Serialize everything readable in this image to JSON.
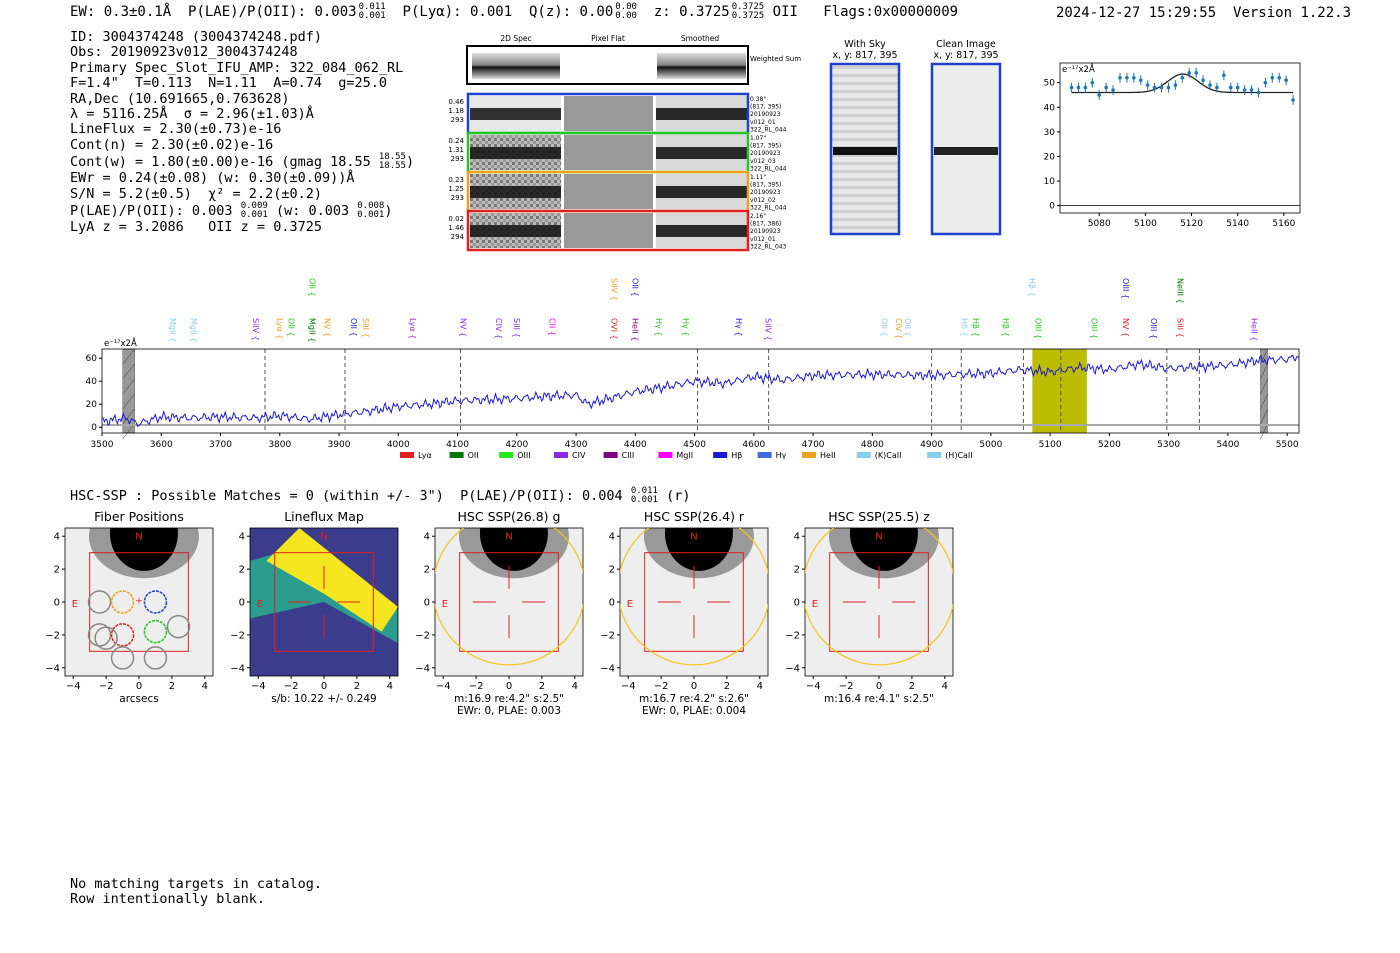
{
  "header": {
    "ew_label": "EW: 0.3±0.1Å",
    "plae_label": "P(LAE)/P(OII): 0.003",
    "plae_hi": "0.011",
    "plae_lo": "0.001",
    "plya_label": "P(Lyα): 0.001",
    "qz_label": "Q(z): 0.00",
    "qz_hi": "0.00",
    "qz_lo": "0.00",
    "z_label": "z: 0.3725",
    "z_hi": "0.3725",
    "z_lo": "0.3725",
    "z_line": "OII",
    "flags": "Flags:0x00000009",
    "timestamp": "2024-12-27 15:29:55",
    "version": "Version 1.22.3"
  },
  "info": {
    "id": "ID: 3004374248 (3004374248.pdf)",
    "obs": "Obs: 20190923v012_3004374248",
    "primary": "Primary Spec_Slot_IFU_AMP: 322_084_062_RL",
    "params": "F=1.4\"  T=0.113  N=1.11  A=0.74  g=25.0",
    "radec": "RA,Dec (10.691665,0.763628)",
    "lambda": "λ = 5116.25Å  σ = 2.96(±1.03)Å",
    "lineflux": "LineFlux = 2.30(±0.73)e-16",
    "contn": "Cont(n) = 2.30(±0.02)e-16",
    "contw": "Cont(w) = 1.80(±0.00)e-16 (gmag 18.55",
    "contw_hi": "18.55",
    "contw_lo": "18.55",
    "ewr": "EWr = 0.24(±0.08) (w: 0.30(±0.09))Å",
    "sn": "S/N = 5.2(±0.5)  χ² = 2.2(±0.2)",
    "plae": "P(LAE)/P(OII): 0.003",
    "plae_hi": "0.009",
    "plae_lo": "0.001",
    "plae_w": "(w: 0.003",
    "plae_w_hi": "0.008",
    "plae_w_lo": "0.001",
    "lya_oii": "LyA z = 3.2086   OII z = 0.3725"
  },
  "cutouts": {
    "col_headers": [
      "2D Spec",
      "Pixel Flat",
      "Smoothed"
    ],
    "weighted_sum": "Weighted Sum",
    "rows": [
      {
        "left": [
          "0.46",
          "1.18",
          "293"
        ],
        "right": [
          "0.38\"",
          "(817, 395)",
          "20190923",
          "v012_01",
          "322_RL_044"
        ],
        "color": "#1f3fd0"
      },
      {
        "left": [
          "0.24",
          "1.31",
          "293"
        ],
        "right": [
          "1.07\"",
          "(817, 395)",
          "20190923",
          "v012_03",
          "322_RL_044"
        ],
        "color": "#22c81e"
      },
      {
        "left": [
          "0.23",
          "1.25",
          "293"
        ],
        "right": [
          "1.11\"",
          "(817, 395)",
          "20190923",
          "v012_02",
          "322_RL_044"
        ],
        "color": "#f0a020"
      },
      {
        "left": [
          "0.02",
          "1.46",
          "294"
        ],
        "right": [
          "2.16\"",
          "(817, 386)",
          "20190923",
          "v012_01",
          "322_RL_043"
        ],
        "color": "#e02020"
      }
    ],
    "with_sky_title": "With Sky",
    "with_sky_xy": "x, y: 817, 395",
    "clean_title": "Clean Image",
    "clean_xy": "x, y: 817, 395"
  },
  "colors": {
    "spectrum": "#1a1ad0",
    "zoom_points": "#1f77b4",
    "highlight": "#bdbd00",
    "fiber_blue": "#1f3fd0",
    "fiber_green": "#22c81e",
    "fiber_orange": "#f0a020",
    "fiber_red": "#e02020",
    "aperture": "#f5c518"
  },
  "chart_data": [
    {
      "type": "scatter",
      "name": "zoom-line-fit",
      "ylabel": "e⁻¹⁷x2Å",
      "x": [
        5068,
        5071,
        5074,
        5077,
        5080,
        5083,
        5086,
        5089,
        5092,
        5095,
        5098,
        5101,
        5104,
        5107,
        5110,
        5113,
        5116,
        5119,
        5122,
        5125,
        5128,
        5131,
        5134,
        5137,
        5140,
        5143,
        5146,
        5149,
        5152,
        5155,
        5158,
        5161,
        5164
      ],
      "y": [
        48,
        48,
        48,
        50,
        45,
        48,
        47,
        52,
        52,
        52,
        51,
        49,
        48,
        48,
        48,
        49,
        52,
        54,
        54,
        51,
        49,
        48,
        53,
        48,
        48,
        47,
        47,
        46,
        50,
        52,
        52,
        51,
        43
      ],
      "fit_baseline": 46,
      "fit_peak": 53.5,
      "fit_center": 5116.25,
      "fit_sigma": 2.96,
      "xlim": [
        5063,
        5167
      ],
      "ylim": [
        -3,
        58
      ],
      "yticks": [
        0,
        10,
        20,
        30,
        40,
        50
      ],
      "xticks": [
        5080,
        5100,
        5120,
        5140,
        5160
      ],
      "grid": false
    },
    {
      "type": "line",
      "name": "full-spectrum",
      "ylabel": "e⁻¹⁷x2Å",
      "xlim": [
        3500,
        5520
      ],
      "ylim": [
        -5,
        68
      ],
      "yticks": [
        0,
        20,
        40,
        60
      ],
      "xticks": [
        3500,
        3600,
        3700,
        3800,
        3900,
        4000,
        4100,
        4200,
        4300,
        4400,
        4500,
        4600,
        4700,
        4800,
        4900,
        5000,
        5100,
        5200,
        5300,
        5400,
        5500
      ],
      "anchors_x": [
        3500,
        3540,
        3560,
        3600,
        3650,
        3700,
        3760,
        3800,
        3850,
        3900,
        3950,
        4000,
        4050,
        4100,
        4150,
        4200,
        4250,
        4300,
        4320,
        4400,
        4450,
        4500,
        4550,
        4600,
        4650,
        4700,
        4800,
        4900,
        5000,
        5050,
        5100,
        5150,
        5200,
        5250,
        5300,
        5400,
        5450,
        5500,
        5520
      ],
      "anchors_y": [
        5,
        8,
        3,
        9,
        8,
        9,
        8,
        10,
        7,
        11,
        14,
        18,
        20,
        23,
        24,
        25,
        27,
        28,
        20,
        31,
        35,
        40,
        38,
        44,
        41,
        45,
        46,
        45,
        47,
        50,
        48,
        52,
        50,
        55,
        51,
        54,
        58,
        59,
        62
      ],
      "cont_y": 2,
      "line_markers": [
        3775,
        3910,
        4105,
        4505,
        4625,
        4900,
        4950,
        5055,
        5118,
        5297,
        5352
      ],
      "highlight_band": [
        5070,
        5162
      ],
      "hatched_bands": [
        [
          3535,
          3555
        ],
        [
          5455,
          5467
        ]
      ],
      "line_labels": [
        {
          "name": "MgII",
          "x": 3610,
          "color": "#87ceeb",
          "row": 1
        },
        {
          "name": "MgII",
          "x": 3645,
          "color": "#87ceeb",
          "row": 1
        },
        {
          "name": "SiIV",
          "x": 3750,
          "color": "#8a2be2",
          "row": 1
        },
        {
          "name": "Lyα",
          "x": 3790,
          "color": "#f0a020",
          "row": 1
        },
        {
          "name": "OII",
          "x": 3810,
          "color": "#22c81e",
          "row": 1
        },
        {
          "name": "MgII",
          "x": 3845,
          "color": "#007700",
          "row": 1
        },
        {
          "name": "OII",
          "x": 3845,
          "color": "#22c81e",
          "row": 0
        },
        {
          "name": "NV",
          "x": 3870,
          "color": "#f0a020",
          "row": 1
        },
        {
          "name": "OII",
          "x": 3915,
          "color": "#1a1ad0",
          "row": 1
        },
        {
          "name": "SiII",
          "x": 3935,
          "color": "#f0a020",
          "row": 1
        },
        {
          "name": "Lyα",
          "x": 4015,
          "color": "#8a2be2",
          "row": 1
        },
        {
          "name": "NV",
          "x": 4100,
          "color": "#8a2be2",
          "row": 1
        },
        {
          "name": "CIV",
          "x": 4160,
          "color": "#8a2be2",
          "row": 1
        },
        {
          "name": "SiII",
          "x": 4190,
          "color": "#8a2be2",
          "row": 1
        },
        {
          "name": "CII",
          "x": 4250,
          "color": "#ff00ff",
          "row": 1
        },
        {
          "name": "SiIV",
          "x": 4355,
          "color": "#f0a020",
          "row": 0
        },
        {
          "name": "OVI",
          "x": 4355,
          "color": "#e02020",
          "row": 1
        },
        {
          "name": "OII",
          "x": 4390,
          "color": "#1a1ad0",
          "row": 0
        },
        {
          "name": "HeII",
          "x": 4390,
          "color": "#800080",
          "row": 1
        },
        {
          "name": "Hγ",
          "x": 4430,
          "color": "#22c81e",
          "row": 1
        },
        {
          "name": "Hγ",
          "x": 4475,
          "color": "#22c81e",
          "row": 1
        },
        {
          "name": "Hγ",
          "x": 4565,
          "color": "#1a1ad0",
          "row": 1
        },
        {
          "name": "SiIV",
          "x": 4615,
          "color": "#8a2be2",
          "row": 1
        },
        {
          "name": "OII",
          "x": 4810,
          "color": "#87ceeb",
          "row": 1
        },
        {
          "name": "CIV",
          "x": 4835,
          "color": "#f0a020",
          "row": 1
        },
        {
          "name": "OII",
          "x": 4850,
          "color": "#87ceeb",
          "row": 1
        },
        {
          "name": "Hδ",
          "x": 4945,
          "color": "#87ceeb",
          "row": 1
        },
        {
          "name": "Hβ",
          "x": 4965,
          "color": "#22c81e",
          "row": 1
        },
        {
          "name": "Hβ",
          "x": 5015,
          "color": "#22c81e",
          "row": 1
        },
        {
          "name": "Hβ",
          "x": 5060,
          "color": "#87ceeb",
          "row": 0
        },
        {
          "name": "OIII",
          "x": 5070,
          "color": "#22c81e",
          "row": 1
        },
        {
          "name": "OIII",
          "x": 5165,
          "color": "#22c81e",
          "row": 1
        },
        {
          "name": "OIII",
          "x": 5218,
          "color": "#1a1ad0",
          "row": 0
        },
        {
          "name": "NV",
          "x": 5218,
          "color": "#e02020",
          "row": 1
        },
        {
          "name": "OIII",
          "x": 5265,
          "color": "#1a1ad0",
          "row": 1
        },
        {
          "name": "NeIII",
          "x": 5310,
          "color": "#007700",
          "row": 0
        },
        {
          "name": "SiII",
          "x": 5310,
          "color": "#e02020",
          "row": 1
        },
        {
          "name": "HeII",
          "x": 5435,
          "color": "#8a2be2",
          "row": 1
        }
      ],
      "legend": [
        {
          "name": "Lyα",
          "color": "#e02020"
        },
        {
          "name": "OII",
          "color": "#007700"
        },
        {
          "name": "OIII",
          "color": "#22e81e"
        },
        {
          "name": "CIV",
          "color": "#8a2be2"
        },
        {
          "name": "CIII",
          "color": "#800080"
        },
        {
          "name": "MgII",
          "color": "#ff00ff"
        },
        {
          "name": "Hβ",
          "color": "#1a1ad0"
        },
        {
          "name": "Hγ",
          "color": "#4169e1"
        },
        {
          "name": "HeII",
          "color": "#f0a020"
        },
        {
          "name": "(K)CaII",
          "color": "#87ceeb"
        },
        {
          "name": "(H)CaII",
          "color": "#87ceeb"
        }
      ]
    },
    {
      "type": "heatmap",
      "name": "imaging-panels",
      "xlim": [
        -4.5,
        4.5
      ],
      "ylim": [
        -4.5,
        4.5
      ],
      "ticks": [
        -4,
        -2,
        0,
        2,
        4
      ],
      "panels": [
        {
          "title": "Fiber Positions",
          "xlabel": "arcsecs",
          "caption": "",
          "kind": "fiber"
        },
        {
          "title": "Lineflux Map",
          "xlabel": "",
          "caption": "s/b: 10.22 +/- 0.249",
          "kind": "flux"
        },
        {
          "title": "HSC SSP(26.8) g",
          "xlabel": "",
          "caption": "m:16.9  re:4.2\"  s:2.5\"",
          "caption2": "EWr: 0, PLAE: 0.003",
          "kind": "img"
        },
        {
          "title": "HSC SSP(26.4) r",
          "xlabel": "",
          "caption": "m:16.7  re:4.2\"  s:2.6\"",
          "caption2": "EWr: 0, PLAE: 0.004",
          "kind": "img"
        },
        {
          "title": "HSC SSP(25.5) z",
          "xlabel": "",
          "caption": "m:16.4  re:4.1\"  s:2.5\"",
          "caption2": "",
          "kind": "img"
        }
      ],
      "compass_n": "N",
      "compass_e": "E"
    }
  ],
  "hsc": {
    "line": "HSC-SSP : Possible Matches = 0 (within +/- 3\")  P(LAE)/P(OII): 0.004",
    "hi": "0.011",
    "lo": "0.001",
    "band": "(r)"
  },
  "footer": {
    "line1": "No matching targets in catalog.",
    "line2": "Row intentionally blank."
  }
}
